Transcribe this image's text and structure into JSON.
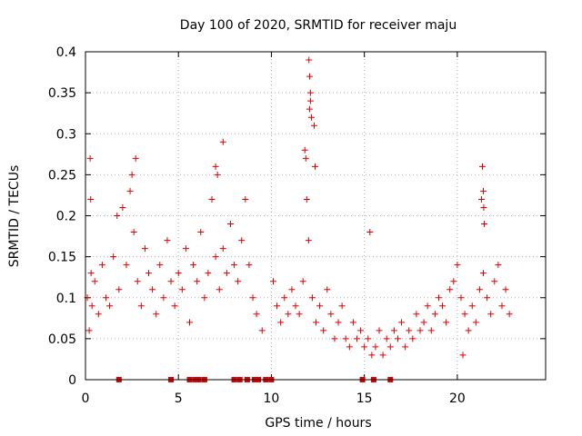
{
  "chart_data": {
    "type": "scatter",
    "title": "Day 100 of 2020, SRMTID for receiver maju",
    "xlabel": "GPS time / hours",
    "ylabel": "SRMTID / TECUs",
    "xlim": [
      0,
      24.75
    ],
    "ylim": [
      0,
      0.4
    ],
    "xticks": [
      0,
      5,
      10,
      15,
      20
    ],
    "xtick_labels": [
      "0",
      "5",
      "10",
      "15",
      "20"
    ],
    "yticks": [
      0,
      0.05,
      0.1,
      0.15,
      0.2,
      0.25,
      0.3,
      0.35,
      0.4
    ],
    "ytick_labels": [
      "0",
      "0.05",
      "0.1",
      "0.15",
      "0.2",
      "0.25",
      "0.3",
      "0.35",
      "0.4"
    ],
    "grid": true,
    "marker": "plus",
    "color": "#e00000",
    "series": [
      {
        "name": "SRMTID",
        "x": [
          0.1,
          0.2,
          0.3,
          0.35,
          0.5,
          0.7,
          0.9,
          1.1,
          1.3,
          1.5,
          1.7,
          1.8,
          2.0,
          2.2,
          2.4,
          2.6,
          2.8,
          3.0,
          3.2,
          3.4,
          3.6,
          3.8,
          4.0,
          4.2,
          4.4,
          4.6,
          4.8,
          5.0,
          5.2,
          5.4,
          5.6,
          5.8,
          6.0,
          6.2,
          6.4,
          6.6,
          6.8,
          7.0,
          7.2,
          7.4,
          7.6,
          7.8,
          8.0,
          8.2,
          8.4,
          8.6,
          8.8,
          9.0,
          9.2,
          9.5,
          10.1,
          10.3,
          10.5,
          10.7,
          10.9,
          11.1,
          11.3,
          11.5,
          11.7,
          11.8,
          11.9,
          12.0,
          12.05,
          12.1,
          12.2,
          12.4,
          12.6,
          12.8,
          13.0,
          13.2,
          13.4,
          13.6,
          13.8,
          14.0,
          14.2,
          14.4,
          14.6,
          14.8,
          15.0,
          15.2,
          15.4,
          15.6,
          15.8,
          16.0,
          16.2,
          16.4,
          16.6,
          16.8,
          17.0,
          17.2,
          17.4,
          17.6,
          17.8,
          18.0,
          18.2,
          18.4,
          18.6,
          18.8,
          19.0,
          19.2,
          19.4,
          19.6,
          19.8,
          20.0,
          20.2,
          20.4,
          20.6,
          20.8,
          21.0,
          21.2,
          21.3,
          21.4,
          21.6,
          21.8,
          22.0,
          22.2,
          22.4,
          22.6,
          22.8,
          0.25,
          0.28,
          2.5,
          2.7,
          7.0,
          7.1,
          7.4,
          11.85,
          12.02,
          12.06,
          12.1,
          12.15,
          12.3,
          12.35,
          15.3,
          20.3,
          21.35,
          21.4,
          21.42,
          21.45
        ],
        "y": [
          0.1,
          0.06,
          0.13,
          0.09,
          0.12,
          0.08,
          0.14,
          0.1,
          0.09,
          0.15,
          0.2,
          0.11,
          0.21,
          0.14,
          0.23,
          0.18,
          0.12,
          0.09,
          0.16,
          0.13,
          0.11,
          0.08,
          0.14,
          0.1,
          0.17,
          0.12,
          0.09,
          0.13,
          0.11,
          0.16,
          0.07,
          0.14,
          0.12,
          0.18,
          0.1,
          0.13,
          0.22,
          0.15,
          0.11,
          0.16,
          0.13,
          0.19,
          0.14,
          0.12,
          0.17,
          0.22,
          0.14,
          0.1,
          0.08,
          0.06,
          0.12,
          0.09,
          0.07,
          0.1,
          0.08,
          0.11,
          0.09,
          0.08,
          0.12,
          0.28,
          0.22,
          0.17,
          0.33,
          0.35,
          0.1,
          0.07,
          0.09,
          0.06,
          0.11,
          0.08,
          0.05,
          0.07,
          0.09,
          0.05,
          0.04,
          0.07,
          0.05,
          0.06,
          0.04,
          0.05,
          0.03,
          0.04,
          0.06,
          0.03,
          0.05,
          0.04,
          0.06,
          0.05,
          0.07,
          0.04,
          0.06,
          0.05,
          0.08,
          0.06,
          0.07,
          0.09,
          0.06,
          0.08,
          0.1,
          0.09,
          0.07,
          0.11,
          0.12,
          0.14,
          0.1,
          0.08,
          0.06,
          0.09,
          0.07,
          0.11,
          0.22,
          0.13,
          0.1,
          0.08,
          0.12,
          0.14,
          0.09,
          0.11,
          0.08,
          0.27,
          0.22,
          0.25,
          0.27,
          0.26,
          0.25,
          0.29,
          0.27,
          0.39,
          0.37,
          0.34,
          0.32,
          0.31,
          0.26,
          0.18,
          0.03,
          0.26,
          0.23,
          0.21,
          0.19
        ],
        "zero_x": [
          1.8,
          4.6,
          5.6,
          5.9,
          6.1,
          6.4,
          8.0,
          8.3,
          8.7,
          9.1,
          9.3,
          9.7,
          10.0,
          14.9,
          15.5,
          16.4
        ]
      }
    ]
  }
}
